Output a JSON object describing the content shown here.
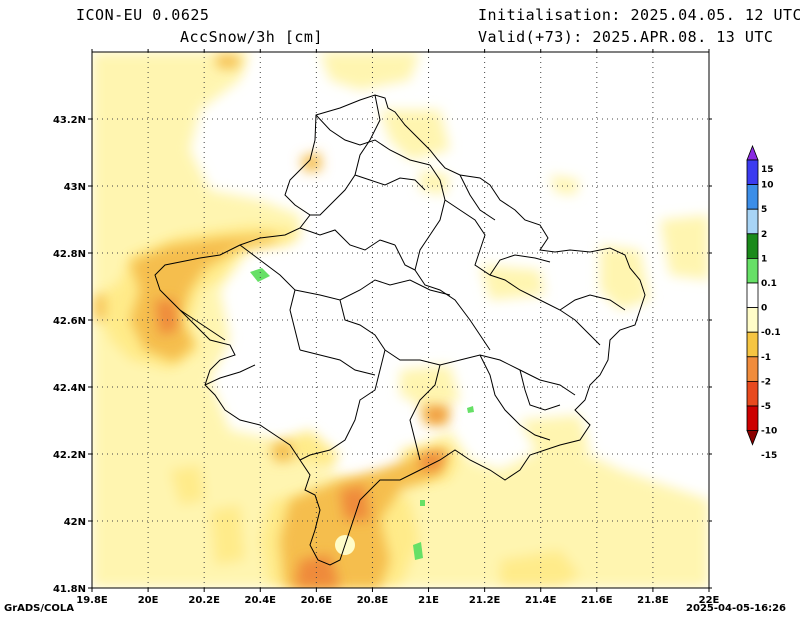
{
  "header": {
    "model": "ICON-EU 0.0625",
    "field": "AccSnow/3h [cm]",
    "init": "Initialisation: 2025.04.05. 12 UTC",
    "valid": "Valid(+73): 2025.APR.08. 13 UTC"
  },
  "footer": {
    "credit": "GrADS/COLA",
    "timestamp": "2025-04-05-16:26"
  },
  "map": {
    "lon_ticks": [
      "19.8E",
      "20E",
      "20.2E",
      "20.4E",
      "20.6E",
      "20.8E",
      "21E",
      "21.2E",
      "21.4E",
      "21.6E",
      "21.8E",
      "22E"
    ],
    "lat_ticks": [
      "41.8N",
      "42N",
      "42.2N",
      "42.4N",
      "42.6N",
      "42.8N",
      "43N",
      "43.2N"
    ]
  },
  "colorbar": {
    "labels": [
      "15",
      "10",
      "5",
      "2",
      "1",
      "0.1",
      "0",
      "-0.1",
      "-1",
      "-2",
      "-5",
      "-10",
      "-15"
    ],
    "colors": [
      "#8a2be2",
      "#3b3bf0",
      "#3c8ee8",
      "#a8d4f5",
      "#1a8a1a",
      "#66e066",
      "#ffffff",
      "#fffcc8",
      "#f5c542",
      "#f08c3c",
      "#e84a1e",
      "#cc0000",
      "#8b0000"
    ]
  },
  "palette": {
    "light_yellow": "#fff5b0",
    "yellow": "#ffeb8a",
    "orange": "#f5be4e",
    "dark_orange": "#ef8a3a",
    "green": "#66e066"
  }
}
